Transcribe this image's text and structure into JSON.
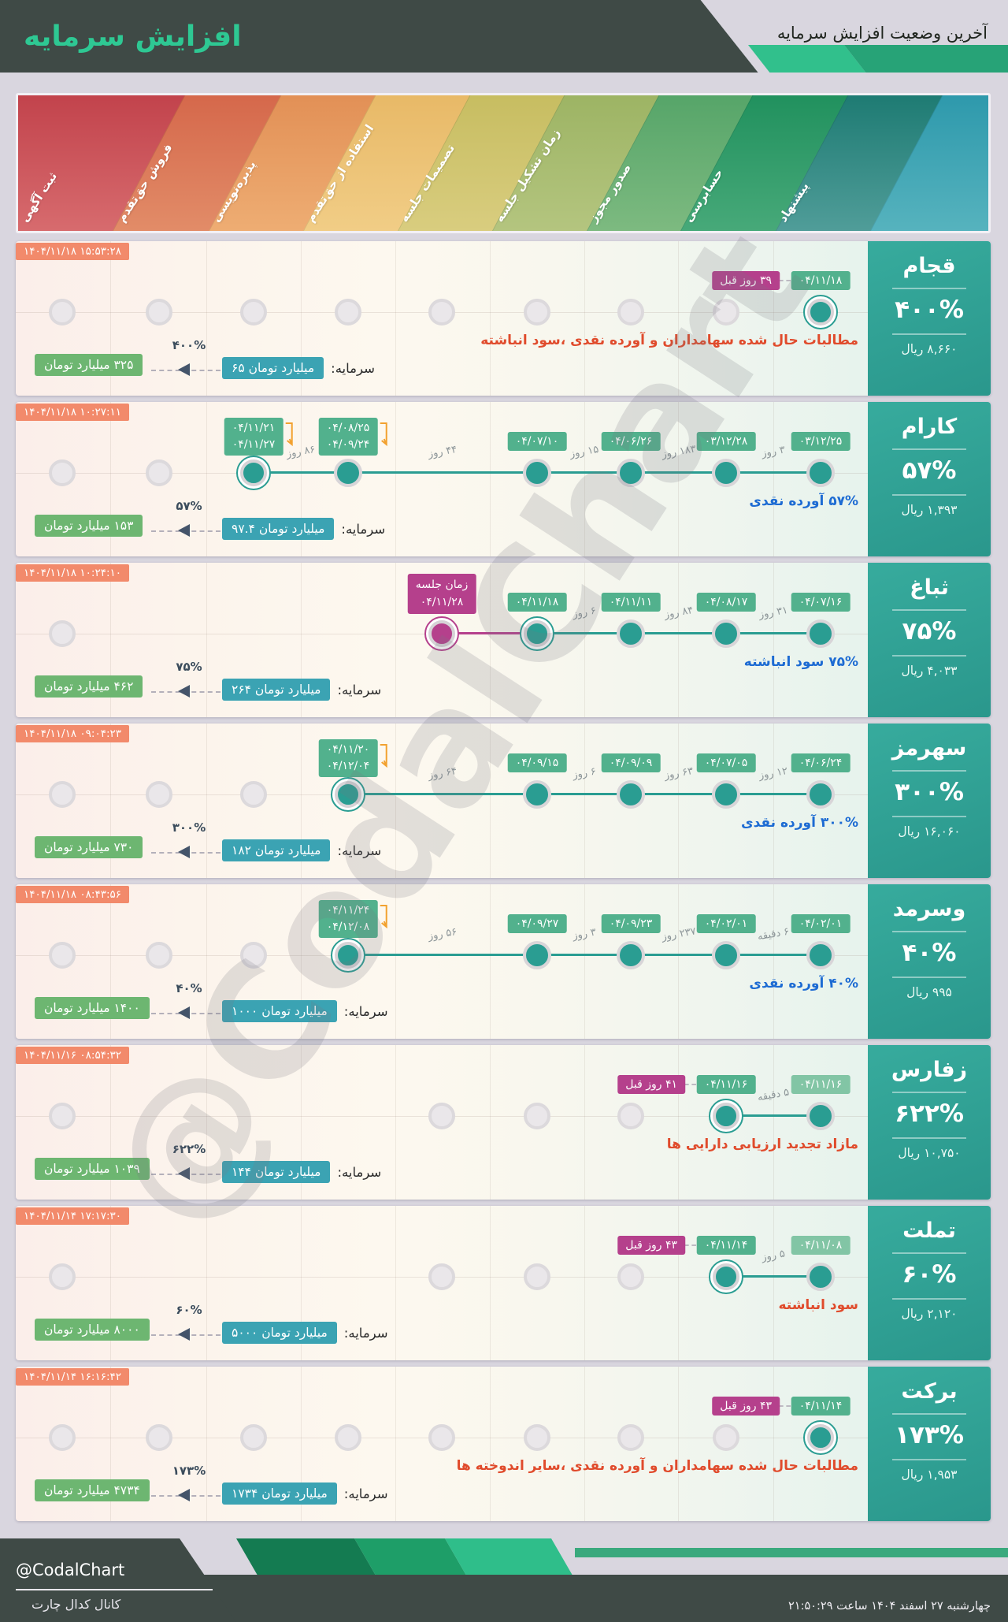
{
  "header": {
    "title": "افزایش سرمایه",
    "subtitle": "آخرین وضعیت افزایش سرمایه",
    "accent_green": "#2ec893",
    "dark": "#3f4a46"
  },
  "watermark": "@CodalChart",
  "labels": {
    "capital_prefix": "سرمایه:",
    "rial": "ریال"
  },
  "stage_band": {
    "stages": [
      {
        "label": "ثبت آگهی",
        "c1": "#c2434c",
        "c2": "#d76b6e"
      },
      {
        "label": "فروش حق‌تقدم",
        "c1": "#d5684b",
        "c2": "#e28c68"
      },
      {
        "label": "پذیره‌نویسی",
        "c1": "#e29056",
        "c2": "#eead73"
      },
      {
        "label": "استفاده از حق‌تقدم",
        "c1": "#e8b967",
        "c2": "#f1cd86"
      },
      {
        "label": "تصمیمات جلسه",
        "c1": "#c7bd61",
        "c2": "#d9cd7f"
      },
      {
        "label": "زمان تشکیل جلسه",
        "c1": "#9db464",
        "c2": "#b4c57f"
      },
      {
        "label": "صدور مجوز",
        "c1": "#56a569",
        "c2": "#7dba80"
      },
      {
        "label": "حسابرسی",
        "c1": "#21915e",
        "c2": "#47a979"
      },
      {
        "label": "پیشنهاد",
        "c1": "#1e7b73",
        "c2": "#509d99"
      }
    ],
    "edge": {
      "c1": "#2e99ac",
      "c2": "#56b3be"
    }
  },
  "rows": [
    {
      "symbol": "قجام",
      "percent": "۴۰۰%",
      "price": "۸,۶۶۰",
      "timestamp": "۱۴۰۴/۱۱/۱۸ ۱۵:۵۳:۲۸",
      "description": "مطالبات حال شده سهامداران و آورده نقدی ،سود انباشته",
      "description_color": "red",
      "capital_from": "۶۵ میلیارد تومان",
      "capital_to": "۳۲۵ میلیارد تومان",
      "capital_percent": "۴۰۰%",
      "dots": [
        {
          "col": 1,
          "type": "gray"
        },
        {
          "col": 2,
          "type": "gray"
        },
        {
          "col": 3,
          "type": "gray"
        },
        {
          "col": 4,
          "type": "gray"
        },
        {
          "col": 5,
          "type": "gray"
        },
        {
          "col": 6,
          "type": "gray"
        },
        {
          "col": 7,
          "type": "gray"
        },
        {
          "col": 8,
          "type": "gray"
        },
        {
          "col": 9,
          "type": "active",
          "date": "۰۴/۱۱/۱۸",
          "ago": "۳۹ روز قبل"
        }
      ],
      "gaps": []
    },
    {
      "symbol": "کارام",
      "percent": "۵۷%",
      "price": "۱,۳۹۳",
      "timestamp": "۱۴۰۴/۱۱/۱۸ ۱۰:۲۷:۱۱",
      "description": "۵۷% آورده نقدی",
      "description_color": "blue",
      "capital_from": "۹۷.۴ میلیارد تومان",
      "capital_to": "۱۵۳ میلیارد تومان",
      "capital_percent": "۵۷%",
      "dots": [
        {
          "col": 1,
          "type": "gray"
        },
        {
          "col": 2,
          "type": "gray"
        },
        {
          "col": 3,
          "type": "active",
          "dates": [
            "۰۴/۱۱/۲۱",
            "۰۴/۱۱/۲۷"
          ]
        },
        {
          "col": 4,
          "type": "done",
          "dates": [
            "۰۴/۰۸/۲۵",
            "۰۴/۰۹/۲۴"
          ]
        },
        {
          "col": 6,
          "type": "done",
          "date": "۰۴/۰۷/۱۰"
        },
        {
          "col": 7,
          "type": "done",
          "date": "۰۴/۰۶/۲۶"
        },
        {
          "col": 8,
          "type": "done",
          "date": "۰۳/۱۲/۲۸"
        },
        {
          "col": 9,
          "type": "done",
          "date": "۰۳/۱۲/۲۵"
        }
      ],
      "gaps": [
        {
          "from": 3,
          "to": 4,
          "label": "۸۶ روز"
        },
        {
          "from": 4,
          "to": 6,
          "label": "۴۴ روز"
        },
        {
          "from": 6,
          "to": 7,
          "label": "۱۵ روز"
        },
        {
          "from": 7,
          "to": 8,
          "label": "۱۸۳ روز"
        },
        {
          "from": 8,
          "to": 9,
          "label": "۳ روز"
        }
      ]
    },
    {
      "symbol": "ثباغ",
      "percent": "۷۵%",
      "price": "۴,۰۳۳",
      "timestamp": "۱۴۰۴/۱۱/۱۸ ۱۰:۲۴:۱۰",
      "description": "۷۵% سود انباشته",
      "description_color": "blue",
      "capital_from": "۲۶۴ میلیارد تومان",
      "capital_to": "۴۶۲ میلیارد تومان",
      "capital_percent": "۷۵%",
      "dots": [
        {
          "col": 1,
          "type": "gray"
        },
        {
          "col": 5,
          "type": "scheduled",
          "lines": [
            "زمان جلسه",
            "۰۴/۱۱/۲۸"
          ]
        },
        {
          "col": 6,
          "type": "active",
          "date": "۰۴/۱۱/۱۸"
        },
        {
          "col": 7,
          "type": "done",
          "date": "۰۴/۱۱/۱۱"
        },
        {
          "col": 8,
          "type": "done",
          "date": "۰۴/۰۸/۱۷"
        },
        {
          "col": 9,
          "type": "done",
          "date": "۰۴/۰۷/۱۶"
        }
      ],
      "gaps": [
        {
          "from": 6,
          "to": 7,
          "label": "۶ روز"
        },
        {
          "from": 7,
          "to": 8,
          "label": "۸۴ روز"
        },
        {
          "from": 8,
          "to": 9,
          "label": "۳۱ روز"
        }
      ]
    },
    {
      "symbol": "سهرمز",
      "percent": "۳۰۰%",
      "price": "۱۶,۰۶۰",
      "timestamp": "۱۴۰۴/۱۱/۱۸ ۰۹:۰۴:۲۳",
      "description": "۳۰۰% آورده نقدی",
      "description_color": "blue",
      "capital_from": "۱۸۲ میلیارد تومان",
      "capital_to": "۷۳۰ میلیارد تومان",
      "capital_percent": "۳۰۰%",
      "dots": [
        {
          "col": 1,
          "type": "gray"
        },
        {
          "col": 2,
          "type": "gray"
        },
        {
          "col": 3,
          "type": "gray"
        },
        {
          "col": 4,
          "type": "active",
          "dates": [
            "۰۴/۱۱/۲۰",
            "۰۴/۱۲/۰۴"
          ]
        },
        {
          "col": 6,
          "type": "done",
          "date": "۰۴/۰۹/۱۵"
        },
        {
          "col": 7,
          "type": "done",
          "date": "۰۴/۰۹/۰۹"
        },
        {
          "col": 8,
          "type": "done",
          "date": "۰۴/۰۷/۰۵"
        },
        {
          "col": 9,
          "type": "done",
          "date": "۰۴/۰۶/۲۴"
        }
      ],
      "gaps": [
        {
          "from": 4,
          "to": 6,
          "label": "۶۴ روز"
        },
        {
          "from": 6,
          "to": 7,
          "label": "۶ روز"
        },
        {
          "from": 7,
          "to": 8,
          "label": "۶۳ روز"
        },
        {
          "from": 8,
          "to": 9,
          "label": "۱۲ روز"
        }
      ]
    },
    {
      "symbol": "وسرمد",
      "percent": "۴۰%",
      "price": "۹۹۵",
      "timestamp": "۱۴۰۴/۱۱/۱۸ ۰۸:۴۳:۵۶",
      "description": "۴۰% آورده نقدی",
      "description_color": "blue",
      "capital_from": "۱۰۰۰ میلیارد تومان",
      "capital_to": "۱۴۰۰ میلیارد تومان",
      "capital_percent": "۴۰%",
      "dots": [
        {
          "col": 1,
          "type": "gray"
        },
        {
          "col": 2,
          "type": "gray"
        },
        {
          "col": 3,
          "type": "gray"
        },
        {
          "col": 4,
          "type": "active",
          "dates": [
            "۰۴/۱۱/۲۴",
            "۰۴/۱۲/۰۸"
          ]
        },
        {
          "col": 6,
          "type": "done",
          "date": "۰۴/۰۹/۲۷"
        },
        {
          "col": 7,
          "type": "done",
          "date": "۰۴/۰۹/۲۳"
        },
        {
          "col": 8,
          "type": "done",
          "date": "۰۴/۰۲/۰۱"
        },
        {
          "col": 9,
          "type": "done",
          "date": "۰۴/۰۲/۰۱"
        }
      ],
      "gaps": [
        {
          "from": 4,
          "to": 6,
          "label": "۵۶ روز"
        },
        {
          "from": 6,
          "to": 7,
          "label": "۳ روز"
        },
        {
          "from": 7,
          "to": 8,
          "label": "۲۳۷ روز"
        },
        {
          "from": 8,
          "to": 9,
          "label": "۶ دقیقه"
        }
      ]
    },
    {
      "symbol": "زفارس",
      "percent": "۶۲۲%",
      "price": "۱۰,۷۵۰",
      "timestamp": "۱۴۰۴/۱۱/۱۶ ۰۸:۵۴:۳۲",
      "description": "مازاد تجدید ارزیابی دارایی ها",
      "description_color": "red",
      "capital_from": "۱۴۴ میلیارد تومان",
      "capital_to": "۱۰۳۹ میلیارد تومان",
      "capital_percent": "۶۲۲%",
      "dots": [
        {
          "col": 1,
          "type": "gray"
        },
        {
          "col": 5,
          "type": "gray"
        },
        {
          "col": 6,
          "type": "gray"
        },
        {
          "col": 7,
          "type": "gray"
        },
        {
          "col": 8,
          "type": "active",
          "date": "۰۴/۱۱/۱۶",
          "ago": "۴۱ روز قبل"
        },
        {
          "col": 9,
          "type": "done",
          "date": "۰۴/۱۱/۱۶",
          "light": true
        }
      ],
      "gaps": [
        {
          "from": 8,
          "to": 9,
          "label": "۵ دقیقه"
        }
      ]
    },
    {
      "symbol": "تملت",
      "percent": "۶۰%",
      "price": "۲,۱۲۰",
      "timestamp": "۱۴۰۴/۱۱/۱۴ ۱۷:۱۷:۳۰",
      "description": "سود انباشته",
      "description_color": "red",
      "capital_from": "۵۰۰۰ میلیارد تومان",
      "capital_to": "۸۰۰۰ میلیارد تومان",
      "capital_percent": "۶۰%",
      "dots": [
        {
          "col": 1,
          "type": "gray"
        },
        {
          "col": 5,
          "type": "gray"
        },
        {
          "col": 6,
          "type": "gray"
        },
        {
          "col": 7,
          "type": "gray"
        },
        {
          "col": 8,
          "type": "active",
          "date": "۰۴/۱۱/۱۴",
          "ago": "۴۳ روز قبل"
        },
        {
          "col": 9,
          "type": "done",
          "date": "۰۴/۱۱/۰۸",
          "light": true
        }
      ],
      "gaps": [
        {
          "from": 8,
          "to": 9,
          "label": "۵ روز"
        }
      ]
    },
    {
      "symbol": "برکت",
      "percent": "۱۷۳%",
      "price": "۱,۹۵۳",
      "timestamp": "۱۴۰۴/۱۱/۱۴ ۱۶:۱۶:۴۲",
      "description": "مطالبات حال شده سهامداران و آورده نقدی ،سایر اندوخته ها",
      "description_color": "red",
      "capital_from": "۱۷۳۴ میلیارد تومان",
      "capital_to": "۴۷۳۴ میلیارد تومان",
      "capital_percent": "۱۷۳%",
      "dots": [
        {
          "col": 1,
          "type": "gray"
        },
        {
          "col": 2,
          "type": "gray"
        },
        {
          "col": 3,
          "type": "gray"
        },
        {
          "col": 4,
          "type": "gray"
        },
        {
          "col": 5,
          "type": "gray"
        },
        {
          "col": 6,
          "type": "gray"
        },
        {
          "col": 7,
          "type": "gray"
        },
        {
          "col": 8,
          "type": "gray"
        },
        {
          "col": 9,
          "type": "active",
          "date": "۰۴/۱۱/۱۴",
          "ago": "۴۳ روز قبل"
        }
      ],
      "gaps": []
    }
  ],
  "footer": {
    "handle": "@CodalChart",
    "channel": "کانال کدال چارت",
    "datetime": "چهارشنبه ۲۷ اسفند ۱۴۰۴ ساعت ۲۱:۵۰:۲۹"
  }
}
